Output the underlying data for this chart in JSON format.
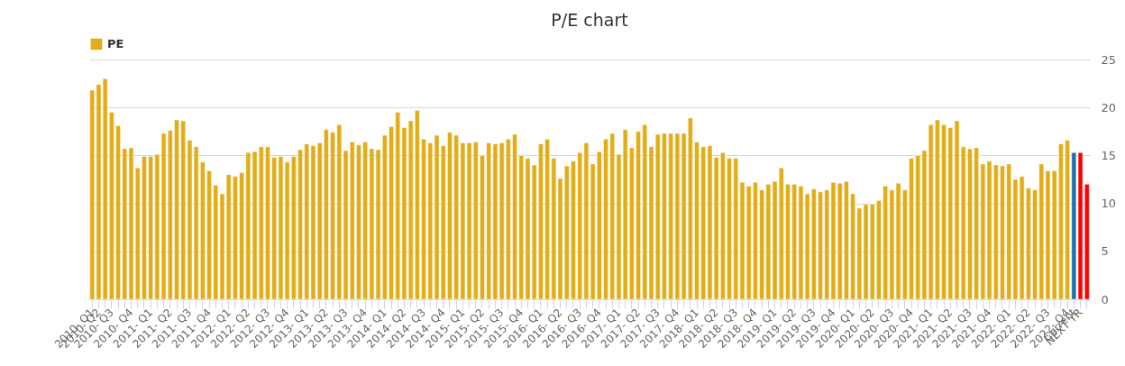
{
  "chart_data": {
    "type": "bar",
    "title": "P/E chart",
    "categories": [
      "2010- Q1",
      "2010- Q2",
      null,
      "2010- Q3",
      null,
      null,
      "2010- Q4",
      null,
      null,
      "2011- Q1",
      null,
      null,
      "2011- Q2",
      null,
      null,
      "2011- Q3",
      null,
      null,
      "2011- Q4",
      null,
      null,
      "2012- Q1",
      null,
      null,
      "2012- Q2",
      null,
      null,
      "2012- Q3",
      null,
      null,
      "2012- Q4",
      null,
      null,
      "2013- Q1",
      null,
      null,
      "2013- Q2",
      null,
      null,
      "2013- Q3",
      null,
      null,
      "2013- Q4",
      null,
      null,
      "2014- Q1",
      null,
      null,
      "2014- Q2",
      null,
      null,
      "2014- Q3",
      null,
      null,
      "2014- Q4",
      null,
      null,
      "2015- Q1",
      null,
      null,
      "2015- Q2",
      null,
      null,
      "2015- Q3",
      null,
      null,
      "2015- Q4",
      null,
      null,
      "2016- Q1",
      null,
      null,
      "2016- Q2",
      null,
      null,
      "2016- Q3",
      null,
      null,
      "2016- Q4",
      null,
      null,
      "2017- Q1",
      null,
      null,
      "2017- Q2",
      null,
      null,
      "2017- Q3",
      null,
      null,
      "2017- Q4",
      null,
      null,
      "2018- Q1",
      null,
      null,
      "2018- Q2",
      null,
      null,
      "2018- Q3",
      null,
      null,
      "2018- Q4",
      null,
      null,
      "2019- Q1",
      null,
      null,
      "2019- Q2",
      null,
      null,
      "2019- Q3",
      null,
      null,
      "2019- Q4",
      null,
      null,
      "2020- Q1",
      null,
      null,
      "2020- Q2",
      null,
      null,
      "2020- Q3",
      null,
      null,
      "2020- Q4",
      null,
      null,
      "2021- Q1",
      null,
      null,
      "2021- Q2",
      null,
      null,
      "2021- Q3",
      null,
      null,
      "2021- Q4",
      null,
      null,
      "2022- Q1",
      null,
      null,
      "2022- Q2",
      null,
      null,
      "2022- Q3",
      null,
      null,
      "2022- Q4",
      "Current",
      "NEXT YR",
      null
    ],
    "series": [
      {
        "name": "PE",
        "color": "#e2ad17",
        "values": [
          21.8,
          22.4,
          23.0,
          19.5,
          18.1,
          15.7,
          15.8,
          13.7,
          14.9,
          14.9,
          15.1,
          17.3,
          17.6,
          18.7,
          18.6,
          16.6,
          15.9,
          14.3,
          13.4,
          11.9,
          11.0,
          13.0,
          12.8,
          13.2,
          15.3,
          15.4,
          15.9,
          15.9,
          14.8,
          14.9,
          14.3,
          14.9,
          15.6,
          16.2,
          16.0,
          16.3,
          17.7,
          17.4,
          18.2,
          15.5,
          16.4,
          16.1,
          16.4,
          15.7,
          15.6,
          17.1,
          18.0,
          19.5,
          17.9,
          18.6,
          19.7,
          16.7,
          16.3,
          17.1,
          16.0,
          17.4,
          17.1,
          16.3,
          16.3,
          16.4,
          15.0,
          16.3,
          16.2,
          16.3,
          16.7,
          17.2,
          15.0,
          14.7,
          14.0,
          16.2,
          16.7,
          14.7,
          12.6,
          13.9,
          14.4,
          15.3,
          16.3,
          14.1,
          15.4,
          16.7,
          17.3,
          15.1,
          17.7,
          15.8,
          17.5,
          18.2,
          15.9,
          17.2,
          17.3,
          17.3,
          17.3,
          17.3,
          18.9,
          16.4,
          15.9,
          16.0,
          14.8,
          15.3,
          14.7,
          14.7,
          12.2,
          11.8,
          12.2,
          11.4,
          12.0,
          12.3,
          13.7,
          12.0,
          12.0,
          11.8,
          11.0,
          11.5,
          11.2,
          11.4,
          12.2,
          12.1,
          12.3,
          11.0,
          9.5,
          9.9,
          9.9,
          10.3,
          11.8,
          11.4,
          12.1,
          11.4,
          14.7,
          15.0,
          15.5,
          18.2,
          18.7,
          18.2,
          17.9,
          18.6,
          15.9,
          15.7,
          15.8,
          14.1,
          14.4,
          14.0,
          13.9,
          14.1,
          12.5,
          12.8,
          11.6,
          11.4,
          14.1,
          13.4,
          13.4,
          16.2,
          16.6,
          15.3,
          15.3,
          12.0
        ],
        "colors": [
          "#e2ad17",
          "#e2ad17",
          "#e2ad17",
          "#e2ad17",
          "#e2ad17",
          "#e2ad17",
          "#e2ad17",
          "#e2ad17",
          "#e2ad17",
          "#e2ad17",
          "#e2ad17",
          "#e2ad17",
          "#e2ad17",
          "#e2ad17",
          "#e2ad17",
          "#e2ad17",
          "#e2ad17",
          "#e2ad17",
          "#e2ad17",
          "#e2ad17",
          "#e2ad17",
          "#e2ad17",
          "#e2ad17",
          "#e2ad17",
          "#e2ad17",
          "#e2ad17",
          "#e2ad17",
          "#e2ad17",
          "#e2ad17",
          "#e2ad17",
          "#e2ad17",
          "#e2ad17",
          "#e2ad17",
          "#e2ad17",
          "#e2ad17",
          "#e2ad17",
          "#e2ad17",
          "#e2ad17",
          "#e2ad17",
          "#e2ad17",
          "#e2ad17",
          "#e2ad17",
          "#e2ad17",
          "#e2ad17",
          "#e2ad17",
          "#e2ad17",
          "#e2ad17",
          "#e2ad17",
          "#e2ad17",
          "#e2ad17",
          "#e2ad17",
          "#e2ad17",
          "#e2ad17",
          "#e2ad17",
          "#e2ad17",
          "#e2ad17",
          "#e2ad17",
          "#e2ad17",
          "#e2ad17",
          "#e2ad17",
          "#e2ad17",
          "#e2ad17",
          "#e2ad17",
          "#e2ad17",
          "#e2ad17",
          "#e2ad17",
          "#e2ad17",
          "#e2ad17",
          "#e2ad17",
          "#e2ad17",
          "#e2ad17",
          "#e2ad17",
          "#e2ad17",
          "#e2ad17",
          "#e2ad17",
          "#e2ad17",
          "#e2ad17",
          "#e2ad17",
          "#e2ad17",
          "#e2ad17",
          "#e2ad17",
          "#e2ad17",
          "#e2ad17",
          "#e2ad17",
          "#e2ad17",
          "#e2ad17",
          "#e2ad17",
          "#e2ad17",
          "#e2ad17",
          "#e2ad17",
          "#e2ad17",
          "#e2ad17",
          "#e2ad17",
          "#e2ad17",
          "#e2ad17",
          "#e2ad17",
          "#e2ad17",
          "#e2ad17",
          "#e2ad17",
          "#e2ad17",
          "#e2ad17",
          "#e2ad17",
          "#e2ad17",
          "#e2ad17",
          "#e2ad17",
          "#e2ad17",
          "#e2ad17",
          "#e2ad17",
          "#e2ad17",
          "#e2ad17",
          "#e2ad17",
          "#e2ad17",
          "#e2ad17",
          "#e2ad17",
          "#e2ad17",
          "#e2ad17",
          "#e2ad17",
          "#e2ad17",
          "#e2ad17",
          "#e2ad17",
          "#e2ad17",
          "#e2ad17",
          "#e2ad17",
          "#e2ad17",
          "#e2ad17",
          "#e2ad17",
          "#e2ad17",
          "#e2ad17",
          "#e2ad17",
          "#e2ad17",
          "#e2ad17",
          "#e2ad17",
          "#e2ad17",
          "#e2ad17",
          "#e2ad17",
          "#e2ad17",
          "#e2ad17",
          "#e2ad17",
          "#e2ad17",
          "#e2ad17",
          "#e2ad17",
          "#e2ad17",
          "#e2ad17",
          "#e2ad17",
          "#e2ad17",
          "#e2ad17",
          "#e2ad17",
          "#e2ad17",
          "#e2ad17",
          "#e2ad17",
          "#e2ad17",
          "#1f6fad",
          "#ff0000",
          "#ff0000"
        ]
      }
    ],
    "ylim": [
      0,
      25
    ],
    "yticks": [
      0,
      5,
      10,
      15,
      20,
      25
    ],
    "grid": "y",
    "legend": "top"
  }
}
